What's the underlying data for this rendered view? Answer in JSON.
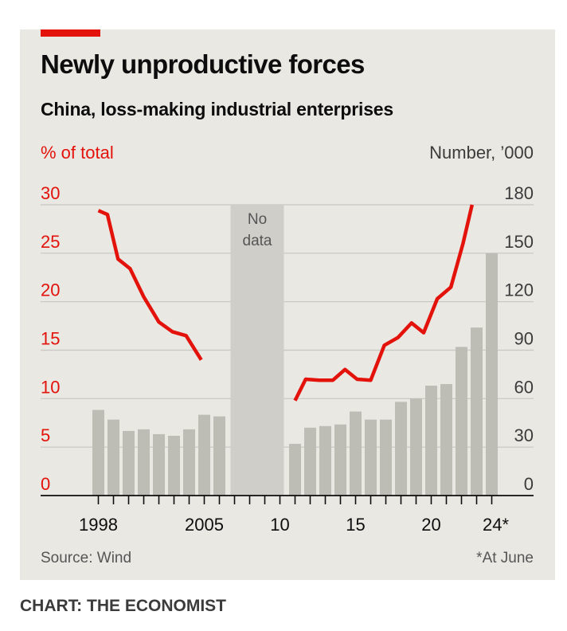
{
  "title": "Newly unproductive forces",
  "subtitle": "China, loss-making industrial enterprises",
  "credit": "CHART: THE ECONOMIST",
  "colors": {
    "accent": "#e3120b",
    "bars": "#bdbcb5",
    "panel": "#e9e8e3",
    "nodata": "#cfcec9"
  },
  "chart_data": {
    "type": "bar+line",
    "left_axis_label": "% of total",
    "right_axis_label": "Number, ’000",
    "left_ticks": [
      0,
      5,
      10,
      15,
      20,
      25,
      30
    ],
    "right_ticks": [
      0,
      30,
      60,
      90,
      120,
      150,
      180
    ],
    "left_range": [
      0,
      30
    ],
    "right_range": [
      0,
      180
    ],
    "x_range": [
      1997.5,
      2024.5
    ],
    "x_ticks": [
      1998,
      1999,
      2000,
      2001,
      2002,
      2003,
      2004,
      2005,
      2006,
      2007,
      2008,
      2009,
      2010,
      2011,
      2012,
      2013,
      2014,
      2015,
      2016,
      2017,
      2018,
      2019,
      2020,
      2021,
      2022,
      2023,
      2024
    ],
    "x_labels": [
      {
        "year": 1998,
        "text": "1998"
      },
      {
        "year": 2005,
        "text": "2005"
      },
      {
        "year": 2010,
        "text": "10"
      },
      {
        "year": 2015,
        "text": "15"
      },
      {
        "year": 2020,
        "text": "20"
      },
      {
        "year": 2024,
        "text": "24*"
      }
    ],
    "no_data": {
      "label_lines": [
        "No",
        "data"
      ],
      "from": 2007,
      "to": 2010
    },
    "series": [
      {
        "name": "Number of loss-making enterprises, '000",
        "axis": "right",
        "type": "bar",
        "color": "#bdbcb5",
        "points": [
          {
            "x": 1998,
            "y": 53
          },
          {
            "x": 1999,
            "y": 47
          },
          {
            "x": 2000,
            "y": 40
          },
          {
            "x": 2001,
            "y": 41
          },
          {
            "x": 2002,
            "y": 38
          },
          {
            "x": 2003,
            "y": 37
          },
          {
            "x": 2004,
            "y": 41
          },
          {
            "x": 2005,
            "y": 50
          },
          {
            "x": 2006,
            "y": 49
          },
          {
            "x": 2011,
            "y": 32
          },
          {
            "x": 2012,
            "y": 42
          },
          {
            "x": 2013,
            "y": 43
          },
          {
            "x": 2014,
            "y": 44
          },
          {
            "x": 2015,
            "y": 52
          },
          {
            "x": 2016,
            "y": 47
          },
          {
            "x": 2017,
            "y": 47
          },
          {
            "x": 2018,
            "y": 58
          },
          {
            "x": 2019,
            "y": 60
          },
          {
            "x": 2020,
            "y": 68
          },
          {
            "x": 2021,
            "y": 69
          },
          {
            "x": 2022,
            "y": 92
          },
          {
            "x": 2023,
            "y": 104
          },
          {
            "x": 2024,
            "y": 150
          }
        ]
      },
      {
        "name": "Share of total, %",
        "axis": "left",
        "type": "line",
        "color": "#e3120b",
        "points": [
          {
            "x": 1998,
            "y": 29.4
          },
          {
            "x": 1998.6,
            "y": 29.0
          },
          {
            "x": 1999.3,
            "y": 24.4
          },
          {
            "x": 2000.1,
            "y": 23.4
          },
          {
            "x": 2001,
            "y": 20.5
          },
          {
            "x": 2002,
            "y": 17.9
          },
          {
            "x": 2002.9,
            "y": 16.9
          },
          {
            "x": 2003.8,
            "y": 16.5
          },
          {
            "x": 2004.8,
            "y": 14.0
          },
          {
            "x": 2011,
            "y": 9.8
          },
          {
            "x": 2011.7,
            "y": 12.0
          },
          {
            "x": 2012.6,
            "y": 11.9
          },
          {
            "x": 2013.5,
            "y": 11.9
          },
          {
            "x": 2014.3,
            "y": 13.0
          },
          {
            "x": 2015.1,
            "y": 12.0
          },
          {
            "x": 2016,
            "y": 11.9
          },
          {
            "x": 2016.9,
            "y": 15.5
          },
          {
            "x": 2017.8,
            "y": 16.3
          },
          {
            "x": 2018.7,
            "y": 17.8
          },
          {
            "x": 2019.5,
            "y": 16.8
          },
          {
            "x": 2020.4,
            "y": 20.3
          },
          {
            "x": 2021.3,
            "y": 21.5
          },
          {
            "x": 2022.1,
            "y": 26.0
          },
          {
            "x": 2022.7,
            "y": 30.0
          }
        ]
      }
    ],
    "source": "Source: Wind",
    "footnote": "*At June"
  }
}
